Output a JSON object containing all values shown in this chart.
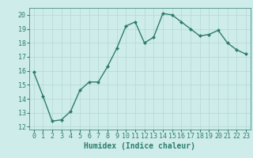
{
  "x": [
    0,
    1,
    2,
    3,
    4,
    5,
    6,
    7,
    8,
    9,
    10,
    11,
    12,
    13,
    14,
    15,
    16,
    17,
    18,
    19,
    20,
    21,
    22,
    23
  ],
  "y": [
    15.9,
    14.2,
    12.4,
    12.5,
    13.1,
    14.6,
    15.2,
    15.2,
    16.3,
    17.6,
    19.2,
    19.5,
    18.0,
    18.4,
    20.1,
    20.0,
    19.5,
    19.0,
    18.5,
    18.6,
    18.9,
    18.0,
    17.5,
    17.2
  ],
  "line_color": "#2e7d6e",
  "marker": "D",
  "marker_size": 2,
  "bg_color": "#ceecea",
  "grid_color": "#b8dbd8",
  "xlabel": "Humidex (Indice chaleur)",
  "xlim": [
    -0.5,
    23.5
  ],
  "ylim": [
    11.8,
    20.5
  ],
  "yticks": [
    12,
    13,
    14,
    15,
    16,
    17,
    18,
    19,
    20
  ],
  "xticks": [
    0,
    1,
    2,
    3,
    4,
    5,
    6,
    7,
    8,
    9,
    10,
    11,
    12,
    13,
    14,
    15,
    16,
    17,
    18,
    19,
    20,
    21,
    22,
    23
  ],
  "xlabel_fontsize": 7,
  "tick_fontsize": 6,
  "line_width": 1.0
}
